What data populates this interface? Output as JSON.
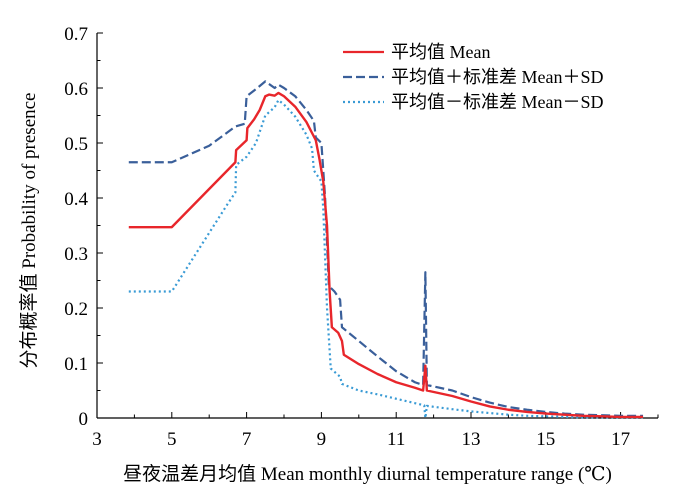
{
  "chart_data": {
    "type": "line",
    "title": "",
    "xlabel": "昼夜温差月均值 Mean monthly diurnal temperature range (℃)",
    "ylabel": "分布概率值 Probability of presence",
    "xlim": [
      3,
      18
    ],
    "ylim": [
      0,
      0.7
    ],
    "xticks": [
      "3",
      "5",
      "7",
      "9",
      "11",
      "13",
      "15",
      "17"
    ],
    "yticks": [
      "0",
      "0.1",
      "0.2",
      "0.3",
      "0.4",
      "0.5",
      "0.6",
      "0.7"
    ],
    "grid": false,
    "legend_position": "top-right",
    "series": [
      {
        "name": "平均值 Mean",
        "color": "#e8262b",
        "dash": "solid",
        "points": [
          [
            3.85,
            0.347
          ],
          [
            5.0,
            0.347
          ],
          [
            6.7,
            0.465
          ],
          [
            6.72,
            0.487
          ],
          [
            7.0,
            0.505
          ],
          [
            7.02,
            0.527
          ],
          [
            7.2,
            0.543
          ],
          [
            7.35,
            0.56
          ],
          [
            7.5,
            0.585
          ],
          [
            7.6,
            0.588
          ],
          [
            7.75,
            0.586
          ],
          [
            7.85,
            0.591
          ],
          [
            8.0,
            0.585
          ],
          [
            8.3,
            0.566
          ],
          [
            8.6,
            0.538
          ],
          [
            8.85,
            0.505
          ],
          [
            8.95,
            0.47
          ],
          [
            9.05,
            0.43
          ],
          [
            9.15,
            0.35
          ],
          [
            9.22,
            0.23
          ],
          [
            9.28,
            0.165
          ],
          [
            9.45,
            0.155
          ],
          [
            9.55,
            0.14
          ],
          [
            9.6,
            0.115
          ],
          [
            10.0,
            0.098
          ],
          [
            10.5,
            0.08
          ],
          [
            11.0,
            0.065
          ],
          [
            11.5,
            0.055
          ],
          [
            11.72,
            0.05
          ],
          [
            11.78,
            0.095
          ],
          [
            11.82,
            0.05
          ],
          [
            12.5,
            0.04
          ],
          [
            13.0,
            0.03
          ],
          [
            13.5,
            0.021
          ],
          [
            14.0,
            0.015
          ],
          [
            14.5,
            0.011
          ],
          [
            15.0,
            0.008
          ],
          [
            15.5,
            0.006
          ],
          [
            16.0,
            0.004
          ],
          [
            16.5,
            0.003
          ],
          [
            17.0,
            0.002
          ],
          [
            17.6,
            0.002
          ]
        ]
      },
      {
        "name": "平均值＋标准差 Mean＋SD",
        "color": "#3a5f9a",
        "dash": "dashed",
        "points": [
          [
            3.85,
            0.465
          ],
          [
            5.0,
            0.465
          ],
          [
            6.0,
            0.495
          ],
          [
            6.7,
            0.53
          ],
          [
            6.95,
            0.535
          ],
          [
            7.0,
            0.585
          ],
          [
            7.25,
            0.598
          ],
          [
            7.5,
            0.612
          ],
          [
            7.75,
            0.6
          ],
          [
            7.85,
            0.606
          ],
          [
            8.0,
            0.6
          ],
          [
            8.3,
            0.585
          ],
          [
            8.6,
            0.56
          ],
          [
            8.8,
            0.54
          ],
          [
            8.85,
            0.51
          ],
          [
            9.0,
            0.5
          ],
          [
            9.1,
            0.4
          ],
          [
            9.2,
            0.24
          ],
          [
            9.35,
            0.23
          ],
          [
            9.5,
            0.215
          ],
          [
            9.55,
            0.165
          ],
          [
            10.0,
            0.14
          ],
          [
            10.5,
            0.112
          ],
          [
            11.0,
            0.085
          ],
          [
            11.5,
            0.065
          ],
          [
            11.72,
            0.06
          ],
          [
            11.78,
            0.265
          ],
          [
            11.82,
            0.06
          ],
          [
            12.5,
            0.05
          ],
          [
            13.0,
            0.038
          ],
          [
            13.5,
            0.028
          ],
          [
            14.0,
            0.02
          ],
          [
            14.5,
            0.015
          ],
          [
            15.0,
            0.011
          ],
          [
            15.5,
            0.008
          ],
          [
            16.0,
            0.006
          ],
          [
            16.5,
            0.005
          ],
          [
            17.0,
            0.004
          ],
          [
            17.6,
            0.004
          ]
        ]
      },
      {
        "name": "平均值－标准差 Mean－SD",
        "color": "#3a9bd5",
        "dash": "dotted",
        "points": [
          [
            3.85,
            0.23
          ],
          [
            5.0,
            0.23
          ],
          [
            6.5,
            0.39
          ],
          [
            6.7,
            0.41
          ],
          [
            6.72,
            0.46
          ],
          [
            7.0,
            0.475
          ],
          [
            7.25,
            0.5
          ],
          [
            7.5,
            0.55
          ],
          [
            7.75,
            0.565
          ],
          [
            7.85,
            0.578
          ],
          [
            8.0,
            0.57
          ],
          [
            8.3,
            0.548
          ],
          [
            8.6,
            0.515
          ],
          [
            8.75,
            0.49
          ],
          [
            8.8,
            0.45
          ],
          [
            9.0,
            0.43
          ],
          [
            9.05,
            0.38
          ],
          [
            9.15,
            0.2
          ],
          [
            9.25,
            0.09
          ],
          [
            9.5,
            0.075
          ],
          [
            9.55,
            0.062
          ],
          [
            10.0,
            0.05
          ],
          [
            10.5,
            0.043
          ],
          [
            11.0,
            0.035
          ],
          [
            11.5,
            0.027
          ],
          [
            11.75,
            0.023
          ],
          [
            11.78,
            0.0
          ],
          [
            11.82,
            0.022
          ],
          [
            12.5,
            0.016
          ],
          [
            13.0,
            0.012
          ],
          [
            13.5,
            0.009
          ],
          [
            14.0,
            0.006
          ],
          [
            14.5,
            0.004
          ],
          [
            15.0,
            0.003
          ],
          [
            15.5,
            0.002
          ],
          [
            16.0,
            0.001
          ],
          [
            16.5,
            0.001
          ],
          [
            17.0,
            0.001
          ],
          [
            17.6,
            0.001
          ]
        ]
      }
    ]
  }
}
